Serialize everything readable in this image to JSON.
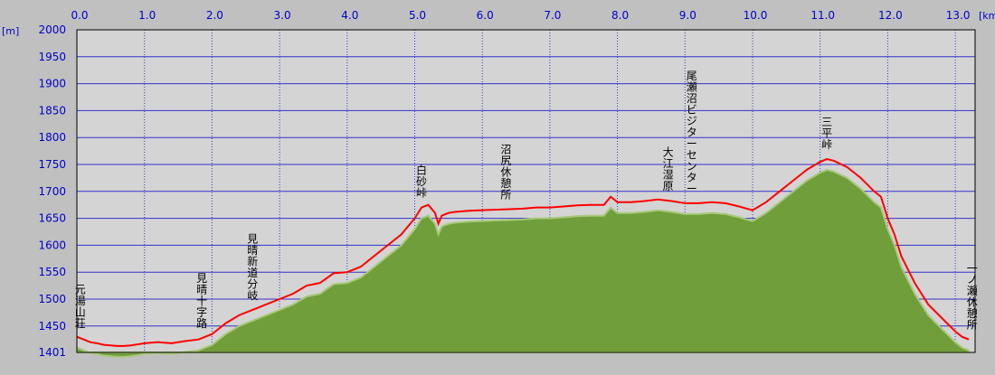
{
  "chart_data": {
    "type": "area",
    "x_unit_label": "[km]",
    "y_unit_label": "[m]",
    "xlim": [
      0,
      13.3
    ],
    "ylim": [
      1401,
      2000
    ],
    "x_ticks": [
      "0.0",
      "1.0",
      "2.0",
      "3.0",
      "4.0",
      "5.0",
      "6.0",
      "7.0",
      "8.0",
      "9.0",
      "10.0",
      "11.0",
      "12.0",
      "13.0"
    ],
    "y_ticks": [
      "2000",
      "1950",
      "1900",
      "1850",
      "1800",
      "1750",
      "1700",
      "1650",
      "1600",
      "1550",
      "1500",
      "1450",
      "1401"
    ],
    "grid": true,
    "colors": {
      "background": "#c0c0c0",
      "plot_background": "#d4d4d4",
      "terrain_fill": "#6f9e3a",
      "terrain_edge": "#a8c878",
      "route_line": "#ff0000",
      "grid_line": "#3333cc",
      "tick_text": "#0000cc"
    },
    "series": [
      {
        "x": [
          0.0,
          0.1,
          0.2,
          0.3,
          0.4,
          0.5,
          0.6,
          0.7,
          0.8,
          0.9,
          1.0,
          1.2,
          1.4,
          1.6,
          1.8,
          1.9,
          2.0,
          2.2,
          2.4,
          2.6,
          2.8,
          3.0,
          3.2,
          3.4,
          3.6,
          3.8,
          4.0,
          4.2,
          4.4,
          4.6,
          4.8,
          5.0,
          5.1,
          5.2,
          5.3,
          5.35,
          5.4,
          5.5,
          5.6,
          5.8,
          6.0,
          6.2,
          6.4,
          6.6,
          6.8,
          7.0,
          7.2,
          7.4,
          7.6,
          7.8,
          7.9,
          8.0,
          8.2,
          8.4,
          8.6,
          8.8,
          9.0,
          9.2,
          9.4,
          9.6,
          9.8,
          10.0,
          10.2,
          10.4,
          10.6,
          10.8,
          11.0,
          11.1,
          11.2,
          11.4,
          11.6,
          11.8,
          11.9,
          12.0,
          12.1,
          12.2,
          12.4,
          12.6,
          12.8,
          13.0,
          13.1,
          13.2
        ],
        "y": [
          1430,
          1425,
          1420,
          1418,
          1415,
          1414,
          1413,
          1413,
          1414,
          1416,
          1418,
          1420,
          1418,
          1422,
          1425,
          1430,
          1435,
          1455,
          1470,
          1480,
          1490,
          1500,
          1510,
          1525,
          1530,
          1548,
          1550,
          1560,
          1580,
          1600,
          1620,
          1650,
          1670,
          1675,
          1660,
          1640,
          1655,
          1660,
          1662,
          1664,
          1665,
          1666,
          1667,
          1668,
          1670,
          1670,
          1672,
          1674,
          1675,
          1675,
          1690,
          1680,
          1680,
          1682,
          1685,
          1682,
          1678,
          1678,
          1680,
          1678,
          1672,
          1665,
          1680,
          1700,
          1720,
          1740,
          1755,
          1760,
          1757,
          1745,
          1725,
          1700,
          1690,
          1650,
          1620,
          1580,
          1530,
          1490,
          1465,
          1440,
          1430,
          1425
        ]
      }
    ],
    "annotations": [
      {
        "text": "元湯山荘",
        "x": 0.05
      },
      {
        "text": "見晴十字路",
        "x": 1.85
      },
      {
        "text": "見晴新道分岐",
        "x": 2.6
      },
      {
        "text": "白砂峠",
        "x": 5.1
      },
      {
        "text": "沼尻休憩所",
        "x": 6.35
      },
      {
        "text": "大江湿原",
        "x": 8.75
      },
      {
        "text": "尾瀬沼ビジターセンター",
        "x": 9.1
      },
      {
        "text": "三平峠",
        "x": 11.1
      },
      {
        "text": "一ノ瀬休憩所",
        "x": 13.25
      }
    ]
  }
}
